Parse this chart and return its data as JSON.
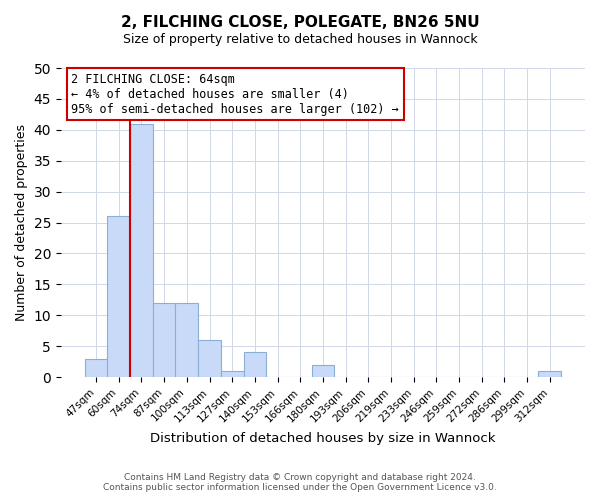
{
  "title": "2, FILCHING CLOSE, POLEGATE, BN26 5NU",
  "subtitle": "Size of property relative to detached houses in Wannock",
  "xlabel": "Distribution of detached houses by size in Wannock",
  "ylabel": "Number of detached properties",
  "bar_labels": [
    "47sqm",
    "60sqm",
    "74sqm",
    "87sqm",
    "100sqm",
    "113sqm",
    "127sqm",
    "140sqm",
    "153sqm",
    "166sqm",
    "180sqm",
    "193sqm",
    "206sqm",
    "219sqm",
    "233sqm",
    "246sqm",
    "259sqm",
    "272sqm",
    "286sqm",
    "299sqm",
    "312sqm"
  ],
  "bar_values": [
    3,
    26,
    41,
    12,
    12,
    6,
    1,
    4,
    0,
    0,
    2,
    0,
    0,
    0,
    0,
    0,
    0,
    0,
    0,
    0,
    1
  ],
  "bar_color": "#c9daf8",
  "bar_edge_color": "#8bafd4",
  "ylim": [
    0,
    50
  ],
  "yticks": [
    0,
    5,
    10,
    15,
    20,
    25,
    30,
    35,
    40,
    45,
    50
  ],
  "marker_color": "#cc0000",
  "annotation_lines": [
    "2 FILCHING CLOSE: 64sqm",
    "← 4% of detached houses are smaller (4)",
    "95% of semi-detached houses are larger (102) →"
  ],
  "footer_line1": "Contains HM Land Registry data © Crown copyright and database right 2024.",
  "footer_line2": "Contains public sector information licensed under the Open Government Licence v3.0.",
  "background_color": "#ffffff",
  "grid_color": "#d0d8e8"
}
